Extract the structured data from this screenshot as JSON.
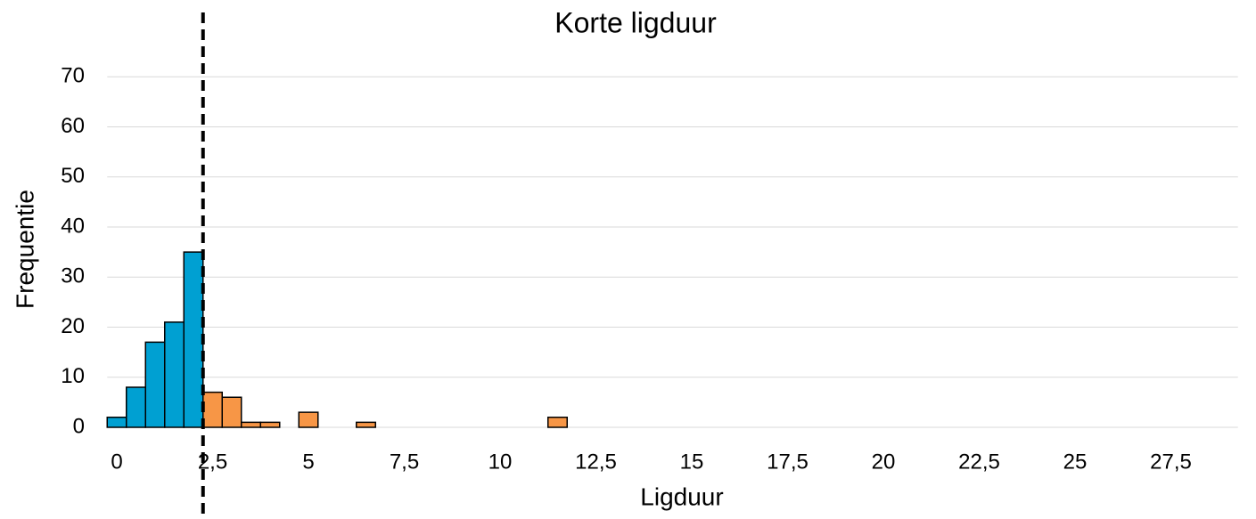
{
  "chart_data": {
    "type": "histogram",
    "title": "Korte ligduur",
    "xlabel": "Ligduur",
    "ylabel": "Frequentie",
    "bins": [
      -0.25,
      0.25,
      0.75,
      1.25,
      1.75,
      2.25,
      2.75,
      3.25,
      3.75,
      4.25,
      4.75,
      5.25,
      5.75,
      6.25,
      6.75,
      7.25,
      7.75,
      8.25,
      8.75,
      9.25,
      9.75,
      10.25,
      10.75,
      11.25,
      11.75
    ],
    "values": [
      2,
      8,
      17,
      21,
      35,
      7,
      6,
      1,
      1,
      0,
      3,
      0,
      0,
      1,
      0,
      0,
      0,
      0,
      0,
      0,
      0,
      0,
      0,
      2
    ],
    "color": "#00a0d2",
    "highlight_color": "#f79646",
    "threshold": 2.25,
    "xlim": [
      -0.25,
      29.25
    ],
    "xticks": [
      0,
      {
        "value": 2.5,
        "label": "2,5"
      },
      5,
      {
        "value": 7.5,
        "label": "7,5"
      },
      10,
      {
        "value": 12.5,
        "label": "12,5"
      },
      15,
      {
        "value": 17.5,
        "label": "17,5"
      },
      20,
      {
        "value": 22.5,
        "label": "22,5"
      },
      25,
      {
        "value": 27.5,
        "label": "27,5"
      }
    ],
    "ylim": [
      0,
      80
    ],
    "yticks": [
      0,
      10,
      20,
      30,
      40,
      50,
      60,
      70
    ],
    "grid": true
  }
}
